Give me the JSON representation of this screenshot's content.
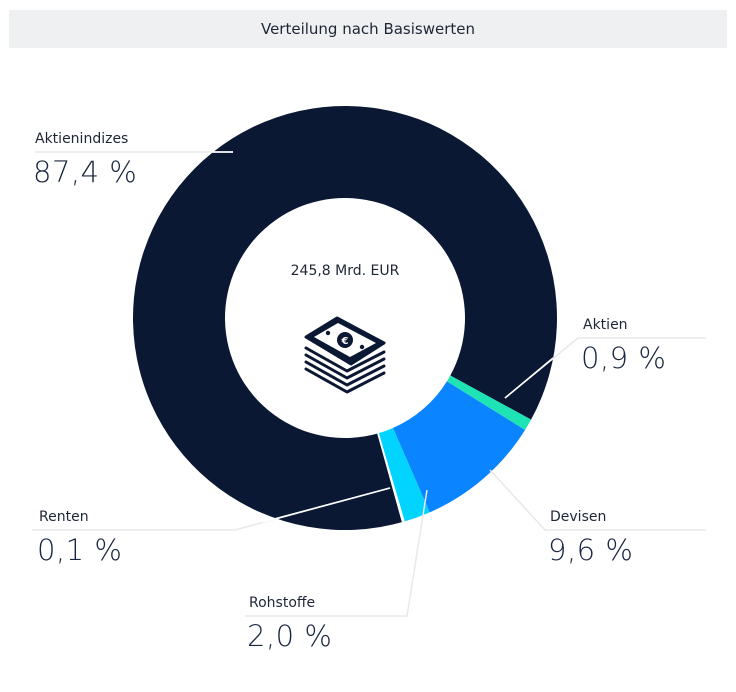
{
  "header": {
    "title": "Verteilung nach Basiswerten"
  },
  "center": {
    "total": "245,8 Mrd. EUR",
    "icon": "money-stack-euro-icon"
  },
  "colors": {
    "Aktienindizes": "#0b1833",
    "Aktien": "#1ee3b4",
    "Devisen": "#0a84ff",
    "Rohstoffe": "#00d4ff",
    "Renten": "#ffffff"
  },
  "labels": {
    "aktienindizes": {
      "name": "Aktienindizes",
      "value": "87,4 %"
    },
    "aktien": {
      "name": "Aktien",
      "value": "0,9 %"
    },
    "devisen": {
      "name": "Devisen",
      "value": "9,6 %"
    },
    "rohstoffe": {
      "name": "Rohstoffe",
      "value": "2,0 %"
    },
    "renten": {
      "name": "Renten",
      "value": "0,1 %"
    }
  },
  "chart_data": {
    "type": "pie",
    "subtype": "donut",
    "title": "Verteilung nach Basiswerten",
    "center_text": "245,8 Mrd. EUR",
    "categories": [
      "Aktienindizes",
      "Aktien",
      "Devisen",
      "Rohstoffe",
      "Renten"
    ],
    "values": [
      87.4,
      0.9,
      9.6,
      2.0,
      0.1
    ],
    "unit": "%",
    "colors": [
      "#0b1833",
      "#1ee3b4",
      "#0a84ff",
      "#00d4ff",
      "#ffffff"
    ],
    "legend": "callout labels with leader lines"
  }
}
